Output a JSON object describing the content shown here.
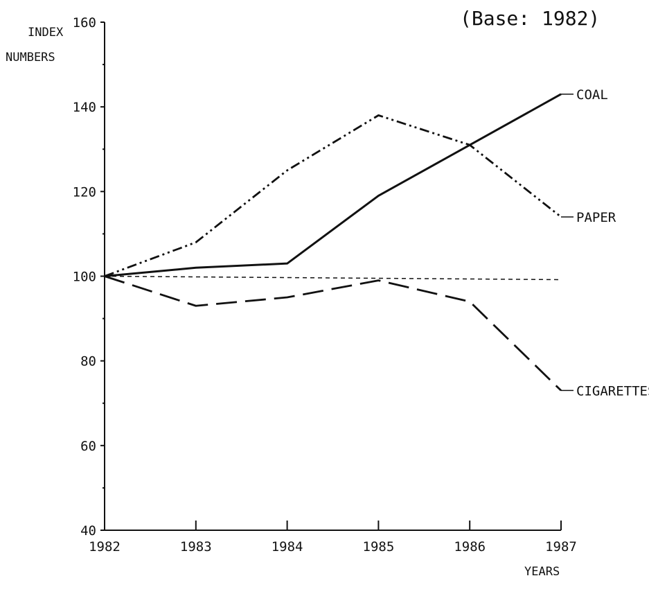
{
  "chart_data": {
    "type": "line",
    "title": "(Base: 1982)",
    "ylabel_lines": [
      "INDEX",
      "NUMBERS"
    ],
    "xlabel": "YEARS",
    "x": [
      1982,
      1983,
      1984,
      1985,
      1986,
      1987
    ],
    "x_tick_labels": [
      "1982",
      "1983",
      "1984",
      "1985",
      "1986",
      "1987"
    ],
    "ylim": [
      40,
      160
    ],
    "y_ticks": [
      40,
      60,
      80,
      100,
      120,
      140,
      160
    ],
    "y_tick_labels": [
      "40",
      "60",
      "80",
      "100",
      "120",
      "140",
      "160"
    ],
    "grid": false,
    "series": [
      {
        "name": "COAL",
        "values": [
          100,
          102,
          103,
          119,
          131,
          143
        ],
        "style": "solid",
        "color": "#111111"
      },
      {
        "name": "PAPER",
        "values": [
          100,
          108,
          125,
          138,
          131,
          114
        ],
        "style": "dash-dot",
        "color": "#111111"
      },
      {
        "name": "CIGARETTES",
        "values": [
          100,
          93,
          95,
          99,
          94,
          73
        ],
        "style": "long-dash",
        "color": "#111111"
      }
    ],
    "reference_line": {
      "value": 100,
      "style": "short-dash"
    }
  }
}
